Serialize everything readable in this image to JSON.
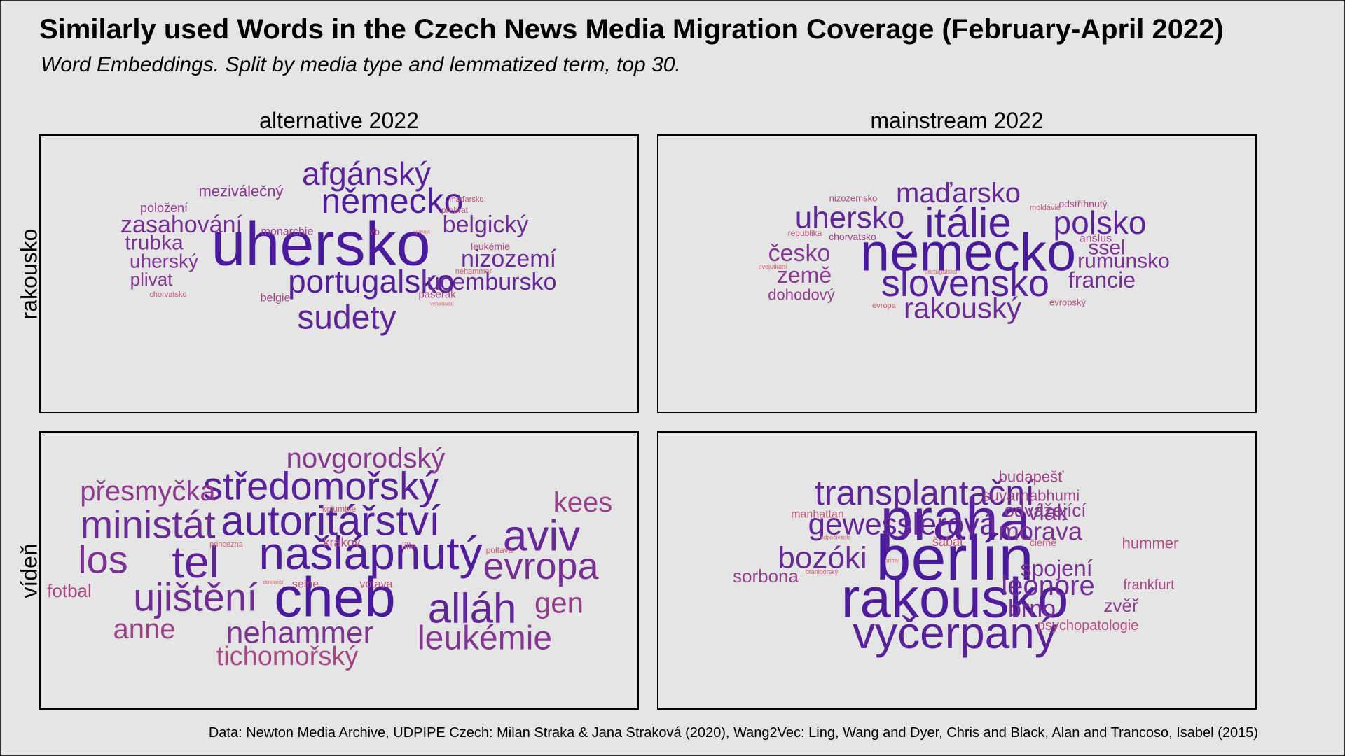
{
  "title": "Similarly used Words in the Czech News Media Migration Coverage (February-April 2022)",
  "subtitle": "Word Embeddings. Split by media type and lemmatized term, top 30.",
  "caption": "Data: Newton Media Archive, UDPIPE Czech: Milan Straka & Jana Straková (2020), Wang2Vec: Ling, Wang and Dyer, Chris and Black, Alan and Trancoso, Isabel (2015)",
  "colors": {
    "high": "#4a1a9c",
    "mid": "#8a3a8f",
    "low": "#d8606e",
    "background": "#e5e5e5"
  },
  "chart_data": {
    "type": "wordcloud",
    "columns": [
      "alternative  2022",
      "mainstream  2022"
    ],
    "rows": [
      "rakousko",
      "vídeň"
    ],
    "panels": [
      {
        "column": "alternative  2022",
        "row": "rakousko",
        "words": [
          {
            "text": "uhersko",
            "rank": 1
          },
          {
            "text": "německo",
            "rank": 2
          },
          {
            "text": "portugalsko",
            "rank": 3
          },
          {
            "text": "afgánský",
            "rank": 4
          },
          {
            "text": "sudety",
            "rank": 5
          },
          {
            "text": "lucembursko",
            "rank": 6
          },
          {
            "text": "nizozemí",
            "rank": 7
          },
          {
            "text": "belgický",
            "rank": 8
          },
          {
            "text": "zasahování",
            "rank": 9
          },
          {
            "text": "trubka",
            "rank": 10
          },
          {
            "text": "uherský",
            "rank": 11
          },
          {
            "text": "plivat",
            "rank": 12
          },
          {
            "text": "meziválečný",
            "rank": 13
          },
          {
            "text": "položení",
            "rank": 14
          },
          {
            "text": "monarchie",
            "rank": 15
          },
          {
            "text": "belgie",
            "rank": 16
          },
          {
            "text": "pašerák",
            "rank": 17
          },
          {
            "text": "leukémie",
            "rank": 18
          },
          {
            "text": "vb",
            "rank": 19
          },
          {
            "text": "přebrat",
            "rank": 20
          },
          {
            "text": "maďarsko",
            "rank": 21
          },
          {
            "text": "chorvatsko",
            "rank": 22
          },
          {
            "text": "nehammer",
            "rank": 23
          },
          {
            "text": "spokojit",
            "rank": 24
          },
          {
            "text": "vynakládat",
            "rank": 25
          }
        ]
      },
      {
        "column": "mainstream  2022",
        "row": "rakousko",
        "words": [
          {
            "text": "německo",
            "rank": 1
          },
          {
            "text": "itálie",
            "rank": 2
          },
          {
            "text": "slovensko",
            "rank": 3
          },
          {
            "text": "polsko",
            "rank": 4
          },
          {
            "text": "uhersko",
            "rank": 5
          },
          {
            "text": "maďarsko",
            "rank": 6
          },
          {
            "text": "rakouský",
            "rank": 7
          },
          {
            "text": "francie",
            "rank": 8
          },
          {
            "text": "rumunsko",
            "rank": 9
          },
          {
            "text": "ssel",
            "rank": 10
          },
          {
            "text": "česko",
            "rank": 11
          },
          {
            "text": "země",
            "rank": 12
          },
          {
            "text": "dohodový",
            "rank": 13
          },
          {
            "text": "anšlus",
            "rank": 14
          },
          {
            "text": "chorvatsko",
            "rank": 15
          },
          {
            "text": "odstříhnutý",
            "rank": 16
          },
          {
            "text": "nizozemsko",
            "rank": 17
          },
          {
            "text": "evropský",
            "rank": 18
          },
          {
            "text": "republika",
            "rank": 19
          },
          {
            "text": "moldávie",
            "rank": 20
          },
          {
            "text": "evropa",
            "rank": 21
          },
          {
            "text": "portugalsko",
            "rank": 22
          },
          {
            "text": "dvojutkání",
            "rank": 23
          }
        ]
      },
      {
        "column": "alternative  2022",
        "row": "vídeň",
        "words": [
          {
            "text": "cheb",
            "rank": 1
          },
          {
            "text": "našlápnutý",
            "rank": 2
          },
          {
            "text": "autoritářství",
            "rank": 3
          },
          {
            "text": "středomořský",
            "rank": 4
          },
          {
            "text": "tel",
            "rank": 5
          },
          {
            "text": "alláh",
            "rank": 6
          },
          {
            "text": "aviv",
            "rank": 7
          },
          {
            "text": "ministát",
            "rank": 8
          },
          {
            "text": "ujištění",
            "rank": 9
          },
          {
            "text": "evropa",
            "rank": 10
          },
          {
            "text": "los",
            "rank": 11
          },
          {
            "text": "nehammer",
            "rank": 12
          },
          {
            "text": "leukémie",
            "rank": 13
          },
          {
            "text": "novgorodský",
            "rank": 14
          },
          {
            "text": "přesmyčka",
            "rank": 15
          },
          {
            "text": "gen",
            "rank": 16
          },
          {
            "text": "kees",
            "rank": 17
          },
          {
            "text": "anne",
            "rank": 18
          },
          {
            "text": "tichomořský",
            "rank": 19
          },
          {
            "text": "fotbal",
            "rank": 20
          },
          {
            "text": "krakov",
            "rank": 21
          },
          {
            "text": "seine",
            "rank": 22
          },
          {
            "text": "votava",
            "rank": 23
          },
          {
            "text": "lille",
            "rank": 24
          },
          {
            "text": "kolumbie",
            "rank": 25
          },
          {
            "text": "poltava",
            "rank": 26
          },
          {
            "text": "princezna",
            "rank": 27
          },
          {
            "text": "doktorát",
            "rank": 28
          }
        ]
      },
      {
        "column": "mainstream  2022",
        "row": "vídeň",
        "words": [
          {
            "text": "berlín",
            "rank": 1
          },
          {
            "text": "rakousko",
            "rank": 2
          },
          {
            "text": "praha",
            "rank": 3
          },
          {
            "text": "vyčerpaný",
            "rank": 4
          },
          {
            "text": "transplantační",
            "rank": 5
          },
          {
            "text": "gewesslerová",
            "rank": 6
          },
          {
            "text": "bozóki",
            "rank": 7
          },
          {
            "text": "leonore",
            "rank": 8
          },
          {
            "text": "brno",
            "rank": 9
          },
          {
            "text": "spojení",
            "rank": 10
          },
          {
            "text": "morava",
            "rank": 11
          },
          {
            "text": "vlak",
            "rank": 12
          },
          {
            "text": "odvážející",
            "rank": 13
          },
          {
            "text": "zvěř",
            "rank": 14
          },
          {
            "text": "sorbona",
            "rank": 15
          },
          {
            "text": "suvarnabhumi",
            "rank": 16
          },
          {
            "text": "budapešť",
            "rank": 17
          },
          {
            "text": "frankfurt",
            "rank": 18
          },
          {
            "text": "hummer",
            "rank": 19
          },
          {
            "text": "psychopatologie",
            "rank": 20
          },
          {
            "text": "šabat",
            "rank": 21
          },
          {
            "text": "manhattan",
            "rank": 22
          },
          {
            "text": "čierne",
            "rank": 23
          },
          {
            "text": "braniborský",
            "rank": 24
          },
          {
            "text": "odpočívadlo",
            "rank": 25
          },
          {
            "text": "prímy",
            "rank": 26
          }
        ]
      }
    ]
  }
}
